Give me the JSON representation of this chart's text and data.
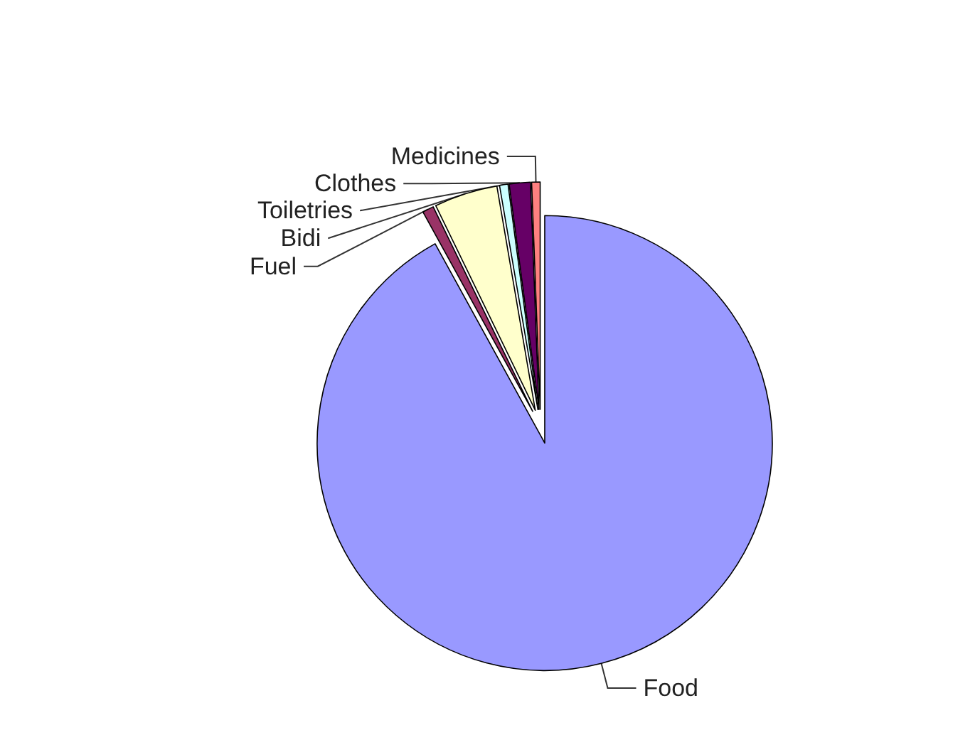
{
  "chart_data": {
    "type": "pie",
    "categories": [
      "Food",
      "Fuel",
      "Bidi",
      "Toiletries",
      "Clothes",
      "Medicines"
    ],
    "values": [
      92,
      0.8,
      4.5,
      0.6,
      1.5,
      0.6
    ],
    "colors": [
      "#9999ff",
      "#993366",
      "#ffffcc",
      "#ccffff",
      "#660066",
      "#ff8080"
    ]
  }
}
